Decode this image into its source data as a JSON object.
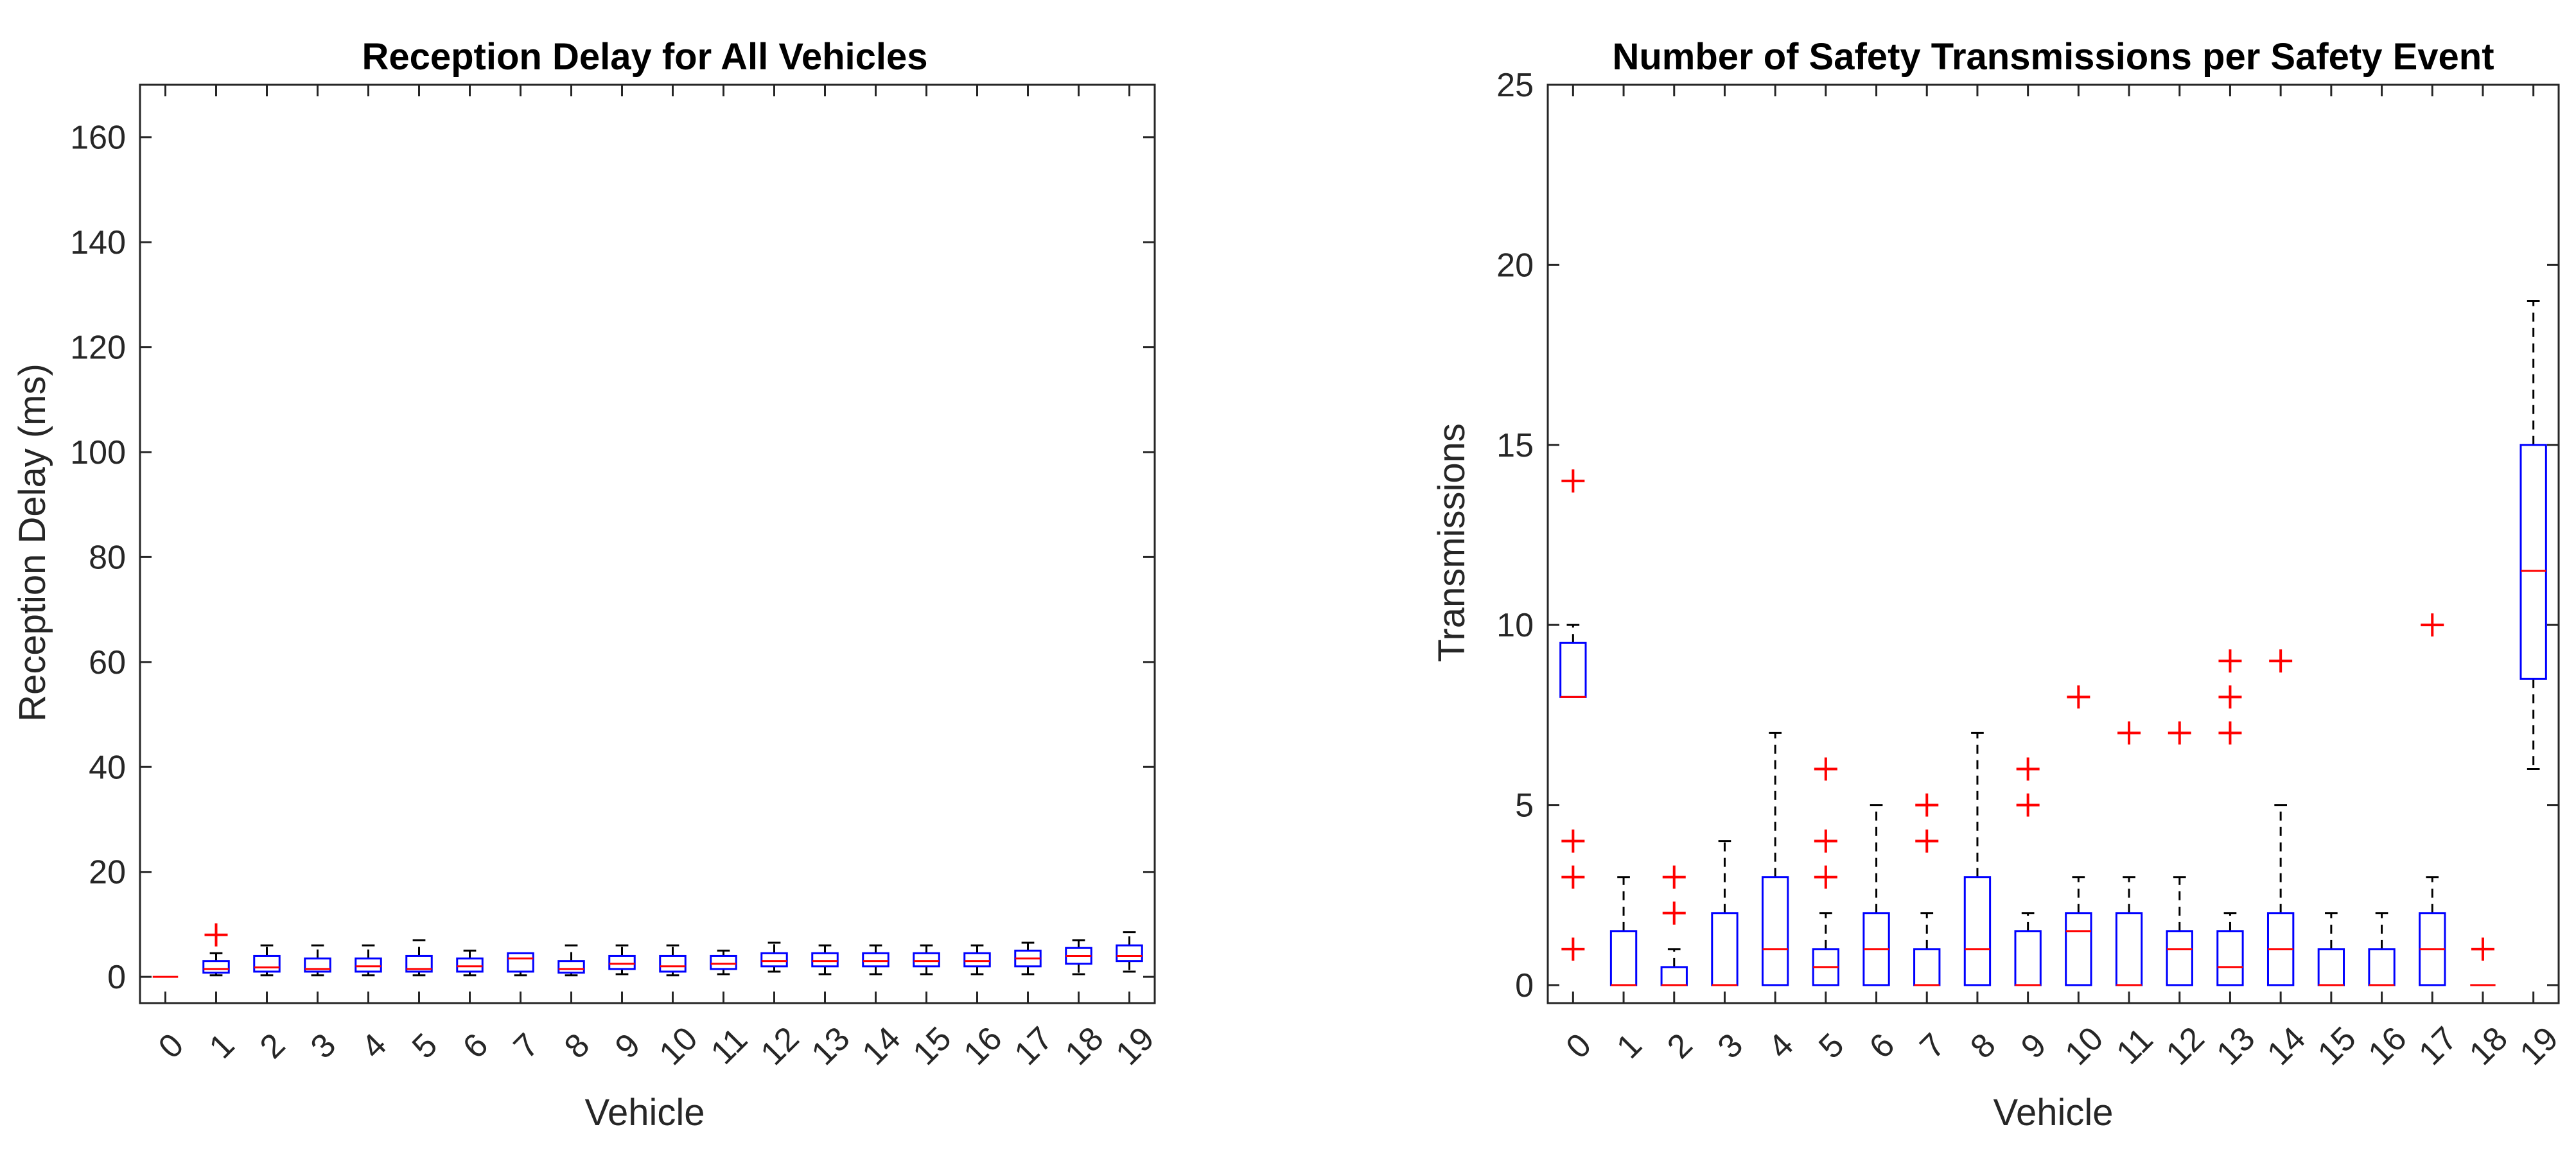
{
  "chart_data": [
    {
      "type": "box",
      "title": "Reception Delay for All Vehicles",
      "xlabel": "Vehicle",
      "ylabel": "Reception Delay (ms)",
      "ylim": [
        -5,
        170
      ],
      "yticks": [
        0,
        20,
        40,
        60,
        80,
        100,
        120,
        140,
        160
      ],
      "categories": [
        "0",
        "1",
        "2",
        "3",
        "4",
        "5",
        "6",
        "7",
        "8",
        "9",
        "10",
        "11",
        "12",
        "13",
        "14",
        "15",
        "16",
        "17",
        "18",
        "19"
      ],
      "boxes": [
        {
          "whisker_low": 0,
          "q1": 0,
          "median": 0,
          "q3": 0,
          "whisker_high": 0,
          "outliers": []
        },
        {
          "whisker_low": 0.3,
          "q1": 0.8,
          "median": 1.5,
          "q3": 3,
          "whisker_high": 4.5,
          "outliers": [
            8
          ]
        },
        {
          "whisker_low": 0.3,
          "q1": 1,
          "median": 1.8,
          "q3": 4,
          "whisker_high": 6,
          "outliers": []
        },
        {
          "whisker_low": 0.3,
          "q1": 1,
          "median": 1.5,
          "q3": 3.5,
          "whisker_high": 6,
          "outliers": []
        },
        {
          "whisker_low": 0.3,
          "q1": 1,
          "median": 2,
          "q3": 3.5,
          "whisker_high": 6,
          "outliers": []
        },
        {
          "whisker_low": 0.3,
          "q1": 1,
          "median": 1.5,
          "q3": 4,
          "whisker_high": 7,
          "outliers": []
        },
        {
          "whisker_low": 0.3,
          "q1": 1,
          "median": 2,
          "q3": 3.5,
          "whisker_high": 5,
          "outliers": []
        },
        {
          "whisker_low": 0.3,
          "q1": 1,
          "median": 3.5,
          "q3": 4.5,
          "whisker_high": 4.5,
          "outliers": []
        },
        {
          "whisker_low": 0.3,
          "q1": 0.8,
          "median": 1.5,
          "q3": 3,
          "whisker_high": 6,
          "outliers": []
        },
        {
          "whisker_low": 0.5,
          "q1": 1.5,
          "median": 2.5,
          "q3": 4,
          "whisker_high": 6,
          "outliers": []
        },
        {
          "whisker_low": 0.3,
          "q1": 1,
          "median": 2,
          "q3": 4,
          "whisker_high": 6,
          "outliers": []
        },
        {
          "whisker_low": 0.5,
          "q1": 1.5,
          "median": 2.5,
          "q3": 4,
          "whisker_high": 5,
          "outliers": []
        },
        {
          "whisker_low": 1,
          "q1": 2,
          "median": 3,
          "q3": 4.5,
          "whisker_high": 6.5,
          "outliers": []
        },
        {
          "whisker_low": 0.5,
          "q1": 2,
          "median": 3,
          "q3": 4.5,
          "whisker_high": 6,
          "outliers": []
        },
        {
          "whisker_low": 0.5,
          "q1": 2,
          "median": 3,
          "q3": 4.5,
          "whisker_high": 6,
          "outliers": []
        },
        {
          "whisker_low": 0.5,
          "q1": 2,
          "median": 3,
          "q3": 4.5,
          "whisker_high": 6,
          "outliers": []
        },
        {
          "whisker_low": 0.5,
          "q1": 2,
          "median": 3,
          "q3": 4.5,
          "whisker_high": 6,
          "outliers": []
        },
        {
          "whisker_low": 0.5,
          "q1": 2,
          "median": 3.5,
          "q3": 5,
          "whisker_high": 6.5,
          "outliers": []
        },
        {
          "whisker_low": 0.5,
          "q1": 2.5,
          "median": 4,
          "q3": 5.5,
          "whisker_high": 7,
          "outliers": []
        },
        {
          "whisker_low": 1,
          "q1": 3,
          "median": 4,
          "q3": 6,
          "whisker_high": 8.5,
          "outliers": []
        }
      ]
    },
    {
      "type": "box",
      "title": "Number of Safety Transmissions per Safety Event",
      "xlabel": "Vehicle",
      "ylabel": "Transmissions",
      "ylim": [
        -0.5,
        25
      ],
      "yticks": [
        0,
        5,
        10,
        15,
        20,
        25
      ],
      "categories": [
        "0",
        "1",
        "2",
        "3",
        "4",
        "5",
        "6",
        "7",
        "8",
        "9",
        "10",
        "11",
        "12",
        "13",
        "14",
        "15",
        "16",
        "17",
        "18",
        "19"
      ],
      "boxes": [
        {
          "whisker_low": 8,
          "q1": 8,
          "median": 8,
          "q3": 9.5,
          "whisker_high": 10,
          "outliers": [
            1,
            3,
            4,
            14
          ]
        },
        {
          "whisker_low": 0,
          "q1": 0,
          "median": 0,
          "q3": 1.5,
          "whisker_high": 3,
          "outliers": []
        },
        {
          "whisker_low": 0,
          "q1": 0,
          "median": 0,
          "q3": 0.5,
          "whisker_high": 1,
          "outliers": [
            2,
            3
          ]
        },
        {
          "whisker_low": 0,
          "q1": 0,
          "median": 0,
          "q3": 2,
          "whisker_high": 4,
          "outliers": []
        },
        {
          "whisker_low": 0,
          "q1": 0,
          "median": 1,
          "q3": 3,
          "whisker_high": 7,
          "outliers": []
        },
        {
          "whisker_low": 0,
          "q1": 0,
          "median": 0.5,
          "q3": 1,
          "whisker_high": 2,
          "outliers": [
            3,
            4,
            6
          ]
        },
        {
          "whisker_low": 0,
          "q1": 0,
          "median": 1,
          "q3": 2,
          "whisker_high": 5,
          "outliers": []
        },
        {
          "whisker_low": 0,
          "q1": 0,
          "median": 0,
          "q3": 1,
          "whisker_high": 2,
          "outliers": [
            4,
            5
          ]
        },
        {
          "whisker_low": 0,
          "q1": 0,
          "median": 1,
          "q3": 3,
          "whisker_high": 7,
          "outliers": []
        },
        {
          "whisker_low": 0,
          "q1": 0,
          "median": 0,
          "q3": 1.5,
          "whisker_high": 2,
          "outliers": [
            5,
            6
          ]
        },
        {
          "whisker_low": 0,
          "q1": 0,
          "median": 1.5,
          "q3": 2,
          "whisker_high": 3,
          "outliers": [
            8
          ]
        },
        {
          "whisker_low": 0,
          "q1": 0,
          "median": 0,
          "q3": 2,
          "whisker_high": 3,
          "outliers": [
            7
          ]
        },
        {
          "whisker_low": 0,
          "q1": 0,
          "median": 1,
          "q3": 1.5,
          "whisker_high": 3,
          "outliers": [
            7
          ]
        },
        {
          "whisker_low": 0,
          "q1": 0,
          "median": 0.5,
          "q3": 1.5,
          "whisker_high": 2,
          "outliers": [
            7,
            8,
            9
          ]
        },
        {
          "whisker_low": 0,
          "q1": 0,
          "median": 1,
          "q3": 2,
          "whisker_high": 5,
          "outliers": [
            9
          ]
        },
        {
          "whisker_low": 0,
          "q1": 0,
          "median": 0,
          "q3": 1,
          "whisker_high": 2,
          "outliers": []
        },
        {
          "whisker_low": 0,
          "q1": 0,
          "median": 0,
          "q3": 1,
          "whisker_high": 2,
          "outliers": []
        },
        {
          "whisker_low": 0,
          "q1": 0,
          "median": 1,
          "q3": 2,
          "whisker_high": 3,
          "outliers": [
            10
          ]
        },
        {
          "whisker_low": 0,
          "q1": 0,
          "median": 0,
          "q3": 0,
          "whisker_high": 0,
          "outliers": [
            1
          ]
        },
        {
          "whisker_low": 6,
          "q1": 8.5,
          "median": 11.5,
          "q3": 15,
          "whisker_high": 19,
          "outliers": []
        }
      ]
    }
  ]
}
